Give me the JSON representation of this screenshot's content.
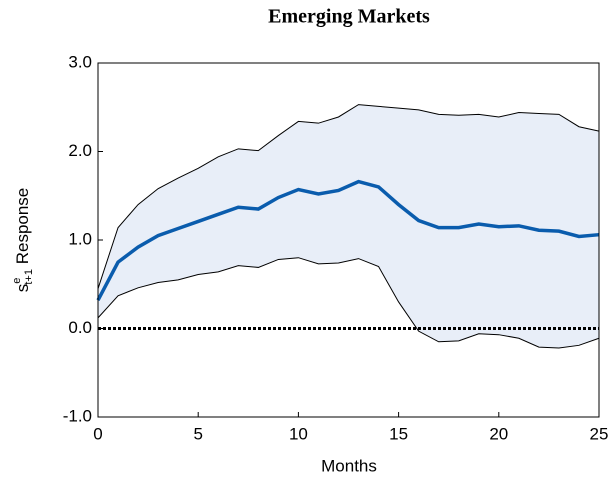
{
  "chart_data": {
    "type": "line_band",
    "title": "Emerging Markets",
    "x_label": "Months",
    "y_label": {
      "base": "s",
      "sup": "e",
      "sub": "t+1",
      "rest": " Response"
    },
    "x": [
      0,
      1,
      2,
      3,
      4,
      5,
      6,
      7,
      8,
      9,
      10,
      11,
      12,
      13,
      14,
      15,
      16,
      17,
      18,
      19,
      20,
      21,
      22,
      23,
      24,
      25
    ],
    "values": [
      0.32,
      0.75,
      0.92,
      1.05,
      1.13,
      1.21,
      1.29,
      1.37,
      1.35,
      1.48,
      1.57,
      1.52,
      1.56,
      1.66,
      1.6,
      1.4,
      1.22,
      1.14,
      1.14,
      1.18,
      1.15,
      1.16,
      1.11,
      1.1,
      1.04,
      1.06
    ],
    "upper": [
      0.45,
      1.14,
      1.4,
      1.58,
      1.7,
      1.81,
      1.94,
      2.03,
      2.01,
      2.18,
      2.34,
      2.32,
      2.39,
      2.53,
      2.51,
      2.49,
      2.47,
      2.42,
      2.41,
      2.42,
      2.39,
      2.44,
      2.43,
      2.42,
      2.28,
      2.23
    ],
    "lower": [
      0.12,
      0.37,
      0.46,
      0.52,
      0.55,
      0.61,
      0.64,
      0.71,
      0.69,
      0.78,
      0.8,
      0.73,
      0.74,
      0.79,
      0.7,
      0.3,
      -0.03,
      -0.15,
      -0.14,
      -0.06,
      -0.07,
      -0.11,
      -0.21,
      -0.22,
      -0.19,
      -0.11
    ],
    "color": "#0a5cad",
    "band_color": "#e8eef8",
    "band_edge_color": "#000000",
    "reference_line": 0,
    "xlim": [
      0,
      25
    ],
    "xticks": [
      0,
      5,
      10,
      15,
      20,
      25
    ],
    "ylim": [
      -1,
      3
    ],
    "yticks": [
      {
        "value": -1,
        "label": "-1.0"
      },
      {
        "value": 0,
        "label": "0.0"
      },
      {
        "value": 1,
        "label": "1.0"
      },
      {
        "value": 2,
        "label": "2.0"
      },
      {
        "value": 3,
        "label": "3.0"
      }
    ],
    "grid": false
  }
}
